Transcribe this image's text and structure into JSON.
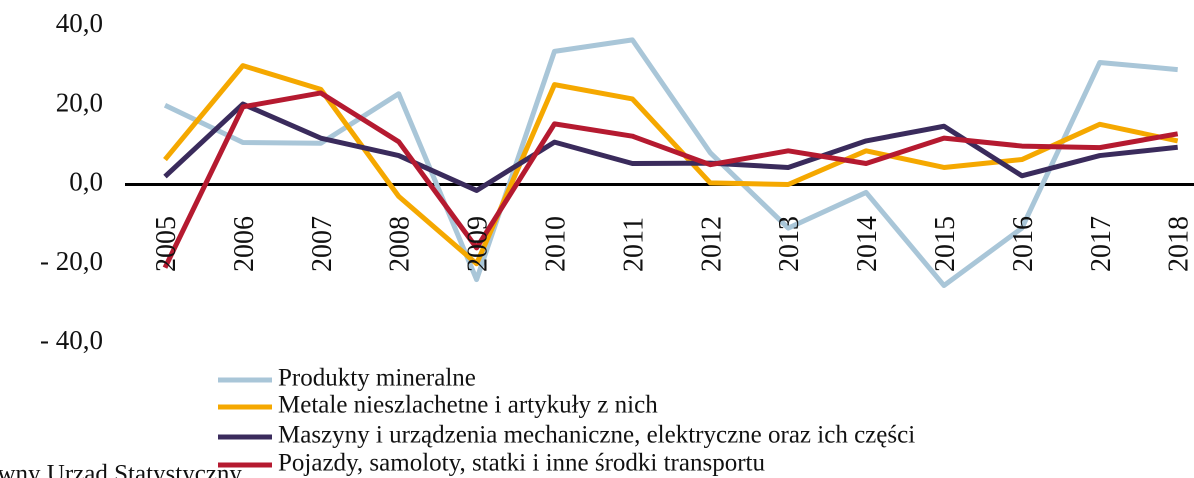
{
  "chart_data": {
    "type": "line",
    "categories": [
      "2005",
      "2006",
      "2007",
      "2008",
      "2009",
      "2010",
      "2011",
      "2012",
      "2013",
      "2014",
      "2015",
      "2016",
      "2017",
      "2018"
    ],
    "series": [
      {
        "name": "Produkty mineralne",
        "color": "#a9c6d8",
        "values": [
          20,
          10.6,
          10.4,
          22.9,
          -24,
          33.6,
          36.5,
          8,
          -11,
          -2,
          -25.5,
          -11,
          30.8,
          29
        ]
      },
      {
        "name": "Metale nieszlachetne i artykuły z nich",
        "color": "#f5a800",
        "values": [
          6.3,
          30,
          24,
          -3,
          -20,
          25.2,
          21.6,
          0.4,
          0,
          8.5,
          4.3,
          6.3,
          15.2,
          11
        ]
      },
      {
        "name": "Maszyny i urządzenia mechaniczne, elektryczne oraz ich części",
        "color": "#3a2b5c",
        "values": [
          2,
          20.3,
          11.7,
          7.3,
          -1.5,
          10.7,
          5.3,
          5.4,
          4.3,
          11,
          14.7,
          2.2,
          7.3,
          9.4
        ]
      },
      {
        "name": "Pojazdy, samoloty, statki i inne środki transportu",
        "color": "#b51a30",
        "values": [
          -21,
          19.6,
          23.1,
          10.8,
          -16,
          15.3,
          12.2,
          5,
          8.5,
          5.3,
          11.7,
          9.7,
          9.3,
          12.8
        ]
      }
    ],
    "ylim": [
      -40,
      40
    ],
    "yticks": [
      {
        "value": 40,
        "label": "40,0"
      },
      {
        "value": 20,
        "label": "20,0"
      },
      {
        "value": 0,
        "label": "0,0"
      },
      {
        "value": -20,
        "label": "- 20,0"
      },
      {
        "value": -40,
        "label": "- 40,0"
      }
    ],
    "source": "Główny Urząd Statystyczny"
  }
}
